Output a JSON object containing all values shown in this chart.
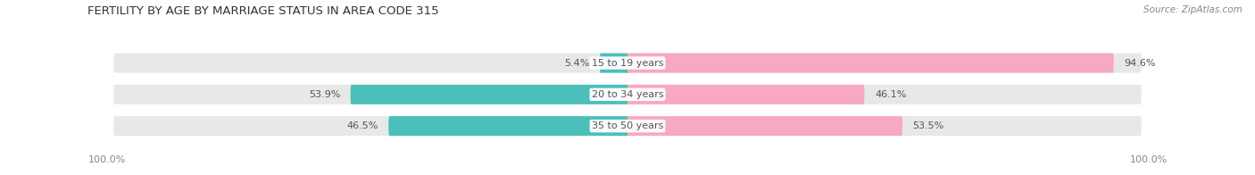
{
  "title": "FERTILITY BY AGE BY MARRIAGE STATUS IN AREA CODE 315",
  "source": "Source: ZipAtlas.com",
  "categories": [
    "15 to 19 years",
    "20 to 34 years",
    "35 to 50 years"
  ],
  "married": [
    5.4,
    53.9,
    46.5
  ],
  "unmarried": [
    94.6,
    46.1,
    53.5
  ],
  "married_color": "#4bbfba",
  "unmarried_color": "#f7a8c4",
  "bar_bg_color": "#e8e8e8",
  "title_fontsize": 9.5,
  "label_fontsize": 8,
  "category_fontsize": 8,
  "legend_fontsize": 8.5,
  "source_fontsize": 7.5,
  "axis_label_left": "100.0%",
  "axis_label_right": "100.0%"
}
